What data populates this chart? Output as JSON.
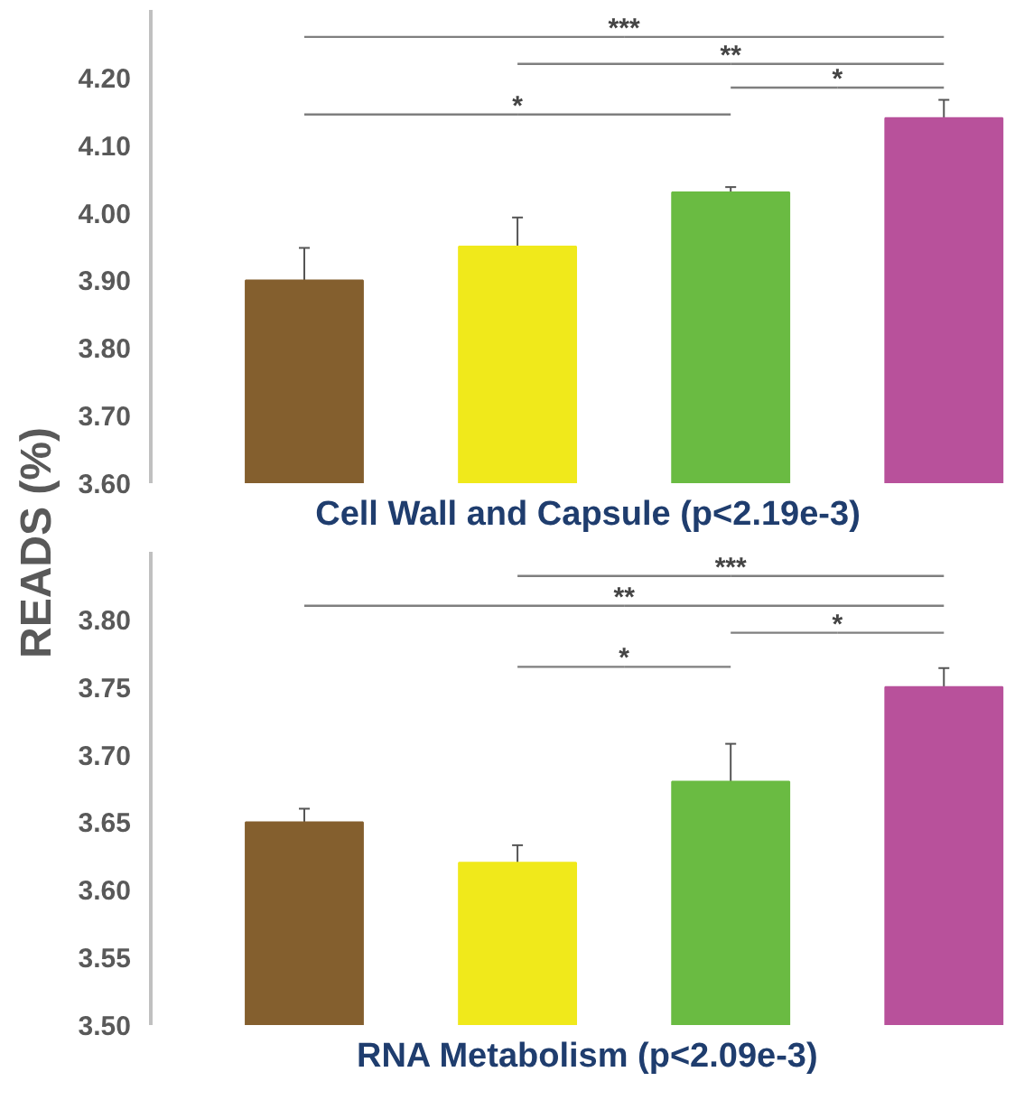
{
  "chart_data": [
    {
      "type": "bar",
      "title": "Cell Wall and Capsule (p<2.19e-3)",
      "ylabel": "READS (%)",
      "categories": [
        null,
        null,
        null,
        null
      ],
      "values": [
        3.9,
        3.95,
        4.03,
        4.14
      ],
      "errors": [
        0.048,
        0.043,
        0.008,
        0.027
      ],
      "colors": [
        "#845f2e",
        "#f0e91b",
        "#6abb42",
        "#b8519b"
      ],
      "ylim": [
        3.6,
        4.3
      ],
      "yticks": [
        {
          "value": 3.6,
          "label": "3.60"
        },
        {
          "value": 3.7,
          "label": "3.70"
        },
        {
          "value": 3.8,
          "label": "3.80"
        },
        {
          "value": 3.9,
          "label": "3.90"
        },
        {
          "value": 4.0,
          "label": "4.00"
        },
        {
          "value": 4.1,
          "label": "4.10"
        },
        {
          "value": 4.2,
          "label": "4.20"
        }
      ],
      "tick_labels": "y",
      "annotations": [
        "***",
        "**",
        "*",
        "*"
      ]
    },
    {
      "type": "bar",
      "title": "RNA Metabolism (p<2.09e-3)",
      "categories": [
        null,
        null,
        null,
        null
      ],
      "values": [
        3.65,
        3.62,
        3.68,
        3.75
      ],
      "errors": [
        0.01,
        0.013,
        0.028,
        0.014
      ],
      "colors": [
        "#845f2e",
        "#f0e91b",
        "#6abb42",
        "#b8519b"
      ],
      "ylim": [
        3.5,
        3.85
      ],
      "yticks": [
        {
          "value": 3.5,
          "label": "3.50"
        },
        {
          "value": 3.55,
          "label": "3.55"
        },
        {
          "value": 3.6,
          "label": "3.60"
        },
        {
          "value": 3.65,
          "label": "3.65"
        },
        {
          "value": 3.7,
          "label": "3.70"
        },
        {
          "value": 3.75,
          "label": "3.75"
        },
        {
          "value": 3.8,
          "label": "3.80"
        }
      ],
      "tick_labels": "y",
      "annotations": [
        "***",
        "**",
        "*",
        "*"
      ]
    }
  ]
}
